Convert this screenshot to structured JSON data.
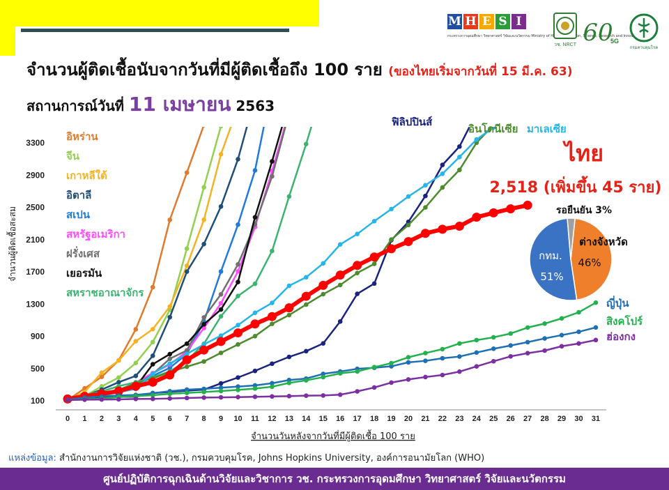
{
  "header": {
    "title": "จำนวนผู้ติดเชื้อนับจากวันที่มีผู้ติดเชื้อถึง 100 ราย",
    "title_note": "(ของไทยเริ่มจากวันที่ 15 มี.ค. 63)",
    "status_prefix": "สถานการณ์วันที่",
    "status_date": "11 เมษายน",
    "status_year": "2563"
  },
  "logos": {
    "mhesi_letters": [
      "M",
      "H",
      "E",
      "S",
      "I"
    ],
    "mhesi_colors": [
      "#1f4e9e",
      "#e8391d",
      "#f6a800",
      "#2a9d3a",
      "#7b2d8e"
    ],
    "mhesi_tagline": "กระทรวงการอุดมศึกษา วิทยาศาสตร์ วิจัยและนวัตกรรม Ministry of Higher Education, Science, Research and Innovation",
    "nrct_text": "วช. NRCT",
    "sixty_text": "60",
    "fiveg_text": "5G",
    "moph_text": "กรมควบคุมโรค"
  },
  "footer": {
    "source_label": "แหล่งข้อมูล:",
    "source_text": "สำนักงานการวิจัยแห่งชาติ (วช.), กรมควบคุมโรค, Johns Hopkins University, องค์การอนามัยโลก (WHO)",
    "banner": "ศูนย์ปฏิบัติการฉุกเฉินด้านวิจัยและวิชาการ   วช.   กระทรวงการอุดมศึกษา วิทยาศาสตร์ วิจัยและนวัตกรรม"
  },
  "chart_data": {
    "type": "line",
    "title": "จำนวนผู้ติดเชื้อนับจากวันที่มีผู้ติดเชื้อถึง 100 ราย",
    "xlabel": "จำนวนวันหลังจากวันที่มีผู้ติดเชื้อ 100 ราย",
    "ylabel": "จำนวนผู้ติดเชื้อสะสม",
    "xlim": [
      0,
      31
    ],
    "ylim": [
      100,
      3300
    ],
    "x_ticks": [
      0,
      1,
      2,
      3,
      4,
      5,
      6,
      7,
      8,
      9,
      10,
      11,
      12,
      13,
      14,
      15,
      16,
      17,
      18,
      19,
      20,
      21,
      22,
      23,
      24,
      25,
      26,
      27,
      28,
      29,
      30,
      31
    ],
    "y_ticks": [
      100,
      500,
      900,
      1300,
      1700,
      2100,
      2500,
      2900,
      3300
    ],
    "y_tick_labels": [
      "100",
      "500",
      "900",
      "1300",
      "1700",
      "2100",
      "2500",
      "2900",
      "3300"
    ],
    "grid": false,
    "legend_placement": "top-left",
    "series": [
      {
        "name": "อิหร่าน",
        "color": "#e07b2c",
        "values": [
          100,
          245,
          388,
          593,
          978,
          1501,
          2336,
          2922,
          3513
        ]
      },
      {
        "name": "จีน",
        "color": "#92d050",
        "values": [
          100,
          150,
          270,
          380,
          560,
          820,
          1220,
          1980,
          2740,
          3500
        ]
      },
      {
        "name": "เกาหลีใต้",
        "color": "#f5b324",
        "values": [
          100,
          200,
          440,
          590,
          830,
          980,
          1261,
          1766,
          2337,
          3150,
          3736
        ]
      },
      {
        "name": "อิตาลี",
        "color": "#1f4e79",
        "values": [
          100,
          150,
          230,
          322,
          400,
          650,
          1128,
          1694,
          2036,
          2502,
          3089,
          3858
        ]
      },
      {
        "name": "สเปน",
        "color": "#1f7ad8",
        "values": [
          100,
          120,
          165,
          222,
          259,
          400,
          500,
          673,
          1073,
          1695,
          2277,
          2950,
          4000
        ]
      },
      {
        "name": "สหรัฐอเมริกา",
        "color": "#ff4dff",
        "values": [
          100,
          124,
          158,
          221,
          319,
          435,
          541,
          704,
          994,
          1301,
          1697,
          2247,
          2943,
          3680
        ]
      },
      {
        "name": "ฝรั่งเศส",
        "color": "#707070",
        "values": [
          100,
          130,
          191,
          212,
          285,
          423,
          613,
          716,
          1126,
          1412,
          1784,
          2281,
          2876,
          3661
        ]
      },
      {
        "name": "เยอรมัน",
        "color": "#111111",
        "values": [
          100,
          130,
          159,
          196,
          262,
          545,
          670,
          800,
          1040,
          1224,
          1565,
          2369,
          3062,
          3795
        ]
      },
      {
        "name": "สหราชอาณาจักร",
        "color": "#3cb371",
        "values": [
          100,
          163,
          206,
          273,
          321,
          382,
          456,
          590,
          798,
          1140,
          1391,
          1543,
          1950,
          2626,
          3277,
          3983
        ]
      },
      {
        "name": "ฟิลิปปินส์",
        "color": "#1a237e",
        "values": [
          100,
          110,
          125,
          140,
          142,
          187,
          202,
          217,
          230,
          307,
          380,
          462,
          552,
          636,
          707,
          803,
          1075,
          1418,
          1546,
          2084,
          2311,
          2633,
          3018,
          3246,
          3660
        ]
      },
      {
        "name": "อินโดนีเซีย",
        "color": "#4e8a2e",
        "values": [
          100,
          134,
          172,
          227,
          309,
          369,
          450,
          514,
          579,
          686,
          790,
          893,
          1046,
          1155,
          1285,
          1414,
          1528,
          1677,
          1790,
          2092,
          2273,
          2491,
          2738,
          2956,
          3293,
          3512
        ]
      },
      {
        "name": "มาเลเซีย",
        "color": "#26b5e8",
        "values": [
          100,
          129,
          149,
          197,
          238,
          428,
          553,
          673,
          790,
          900,
          1030,
          1183,
          1306,
          1518,
          1624,
          1796,
          2031,
          2161,
          2320,
          2470,
          2626,
          2766,
          2908,
          3116,
          3333,
          3483,
          3662
        ]
      },
      {
        "name": "ไทย",
        "color": "#ff0000",
        "values": [
          114,
          147,
          177,
          212,
          272,
          322,
          411,
          599,
          721,
          827,
          934,
          1045,
          1136,
          1245,
          1388,
          1524,
          1651,
          1771,
          1875,
          1978,
          2067,
          2169,
          2220,
          2258,
          2369,
          2423,
          2473,
          2518
        ]
      },
      {
        "name": "ญี่ปุ่น",
        "color": "#1f6fb5",
        "values": [
          105,
          132,
          144,
          157,
          164,
          186,
          210,
          230,
          239,
          254,
          268,
          282,
          309,
          349,
          367,
          425,
          455,
          488,
          501,
          519,
          568,
          587,
          619,
          640,
          690,
          737,
          777,
          819,
          865,
          906,
          947,
          1001
        ]
      },
      {
        "name": "สิงคโปร์",
        "color": "#22b14c",
        "values": [
          100,
          110,
          117,
          138,
          150,
          160,
          178,
          189,
          200,
          212,
          226,
          243,
          266,
          313,
          345,
          385,
          432,
          455,
          509,
          558,
          631,
          683,
          732,
          802,
          844,
          879,
          926,
          1000,
          1049,
          1114,
          1189,
          1309
        ]
      },
      {
        "name": "ฮ่องกง",
        "color": "#7b2fa0",
        "values": [
          100,
          105,
          107,
          109,
          114,
          115,
          120,
          126,
          131,
          134,
          137,
          141,
          145,
          149,
          155,
          157,
          167,
          208,
          256,
          317,
          356,
          386,
          411,
          453,
          518,
          582,
          642,
          682,
          714,
          768,
          802,
          845
        ]
      }
    ],
    "callouts": {
      "thailand_label": "ไทย",
      "thailand_total": "2,518 (เพิ่มขึ้น 45 ราย)"
    }
  },
  "pie": {
    "slices": [
      {
        "label": "ต่างจังหวัด",
        "value_text": "46%",
        "value": 46,
        "color": "#f07f2c"
      },
      {
        "label": "กทม.",
        "value_text": "51%",
        "value": 51,
        "color": "#3b73c4"
      },
      {
        "label": "รอยืนยัน 3%",
        "value_text": "",
        "value": 3,
        "color": "#a0a0a0"
      }
    ]
  }
}
